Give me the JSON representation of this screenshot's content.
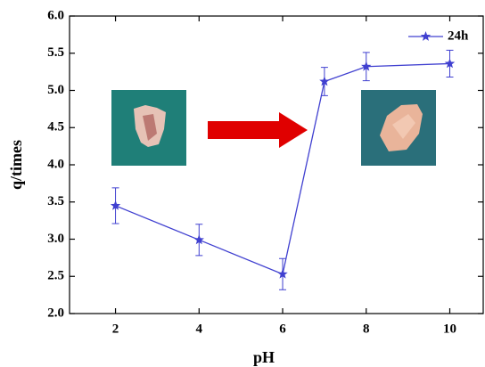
{
  "chart_data": {
    "type": "line",
    "x_label": "pH",
    "y_label": "q/times",
    "x": [
      2,
      4,
      6,
      7,
      8,
      10
    ],
    "series": [
      {
        "name": "24h",
        "color": "#4040d0",
        "values": [
          3.45,
          2.99,
          2.53,
          5.12,
          5.32,
          5.36
        ],
        "errors": [
          0.24,
          0.21,
          0.21,
          0.19,
          0.19,
          0.18
        ]
      }
    ],
    "xlim": [
      0.9,
      10.8
    ],
    "ylim": [
      2.0,
      6.0
    ],
    "xticks": [
      2,
      4,
      6,
      8,
      10
    ],
    "yticks": [
      {
        "value": 2,
        "label": "2.0"
      },
      {
        "value": 2.5,
        "label": "2.5"
      },
      {
        "value": 3,
        "label": "3.0"
      },
      {
        "value": 3.5,
        "label": "3.5"
      },
      {
        "value": 4,
        "label": "4.0"
      },
      {
        "value": 4.5,
        "label": "4.5"
      },
      {
        "value": 5,
        "label": "5.0"
      },
      {
        "value": 5.5,
        "label": "5.5"
      },
      {
        "value": 6,
        "label": "6.0"
      }
    ],
    "legend": "top-right",
    "marker": "star"
  }
}
